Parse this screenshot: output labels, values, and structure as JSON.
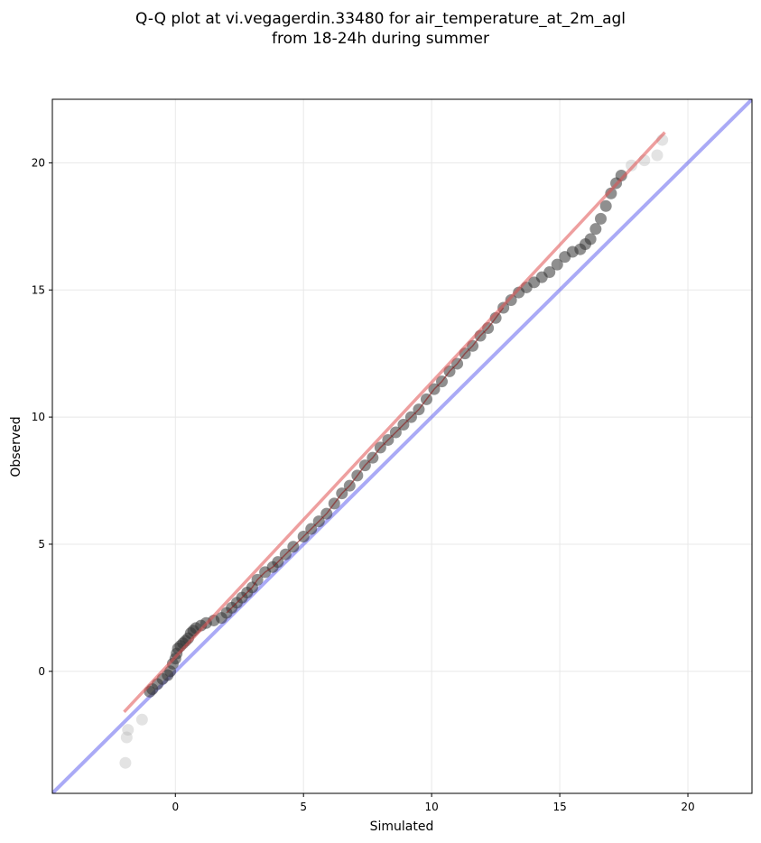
{
  "chart_data": {
    "type": "scatter",
    "title_line1": "Q-Q plot at vi.vegagerdin.33480 for air_temperature_at_2m_agl",
    "title_line2": "from 18-24h during summer",
    "xlabel": "Simulated",
    "ylabel": "Observed",
    "xlim": [
      -4.8,
      22.5
    ],
    "ylim": [
      -4.8,
      22.5
    ],
    "xticks": [
      0,
      5,
      10,
      15,
      20
    ],
    "yticks": [
      0,
      5,
      10,
      15,
      20
    ],
    "grid": true,
    "points_color": "#333333",
    "fit_color": "#e05050",
    "identity_color": "#5555ee",
    "core_color": "#8b1a1a",
    "fit_line": {
      "x": [
        -2.0,
        19.1
      ],
      "y": [
        -1.6,
        21.2
      ]
    },
    "identity_line": {
      "x": [
        -4.8,
        22.5
      ],
      "y": [
        -4.8,
        22.5
      ]
    },
    "series": [
      {
        "x": [
          -1.95,
          -1.9,
          -1.85,
          -1.3,
          -1.0,
          -0.9,
          -0.7,
          -0.5,
          -0.3,
          -0.2,
          -0.1,
          0.0,
          0.05,
          0.1,
          0.2,
          0.3,
          0.4,
          0.5,
          0.6,
          0.7,
          0.8,
          1.0,
          1.2,
          1.5,
          1.8,
          2.0,
          2.2,
          2.4,
          2.6,
          2.8,
          3.0,
          3.2,
          3.5,
          3.8,
          4.0,
          4.3,
          4.6,
          5.0,
          5.3,
          5.6,
          5.9,
          6.2,
          6.5,
          6.8,
          7.1,
          7.4,
          7.7,
          8.0,
          8.3,
          8.6,
          8.9,
          9.2,
          9.5,
          9.8,
          10.1,
          10.4,
          10.7,
          11.0,
          11.3,
          11.6,
          11.9,
          12.2,
          12.5,
          12.8,
          13.1,
          13.4,
          13.7,
          14.0,
          14.3,
          14.6,
          14.9,
          15.2,
          15.5,
          15.8,
          16.0,
          16.2,
          16.4,
          16.6,
          16.8,
          17.0,
          17.2,
          17.4,
          17.8,
          18.3,
          18.8,
          19.0
        ],
        "y": [
          -3.6,
          -2.6,
          -2.3,
          -1.9,
          -0.8,
          -0.7,
          -0.5,
          -0.3,
          -0.15,
          0.0,
          0.3,
          0.5,
          0.7,
          0.9,
          1.0,
          1.1,
          1.2,
          1.3,
          1.5,
          1.6,
          1.7,
          1.8,
          1.9,
          2.0,
          2.1,
          2.3,
          2.5,
          2.7,
          2.9,
          3.1,
          3.3,
          3.6,
          3.9,
          4.1,
          4.3,
          4.6,
          4.9,
          5.3,
          5.6,
          5.9,
          6.2,
          6.6,
          7.0,
          7.3,
          7.7,
          8.1,
          8.4,
          8.8,
          9.1,
          9.4,
          9.7,
          10.0,
          10.3,
          10.7,
          11.1,
          11.4,
          11.8,
          12.1,
          12.5,
          12.8,
          13.2,
          13.5,
          13.9,
          14.3,
          14.6,
          14.9,
          15.1,
          15.3,
          15.5,
          15.7,
          16.0,
          16.3,
          16.5,
          16.6,
          16.8,
          17.0,
          17.4,
          17.8,
          18.3,
          18.8,
          19.2,
          19.5,
          19.9,
          20.1,
          20.3,
          20.9
        ]
      }
    ]
  }
}
